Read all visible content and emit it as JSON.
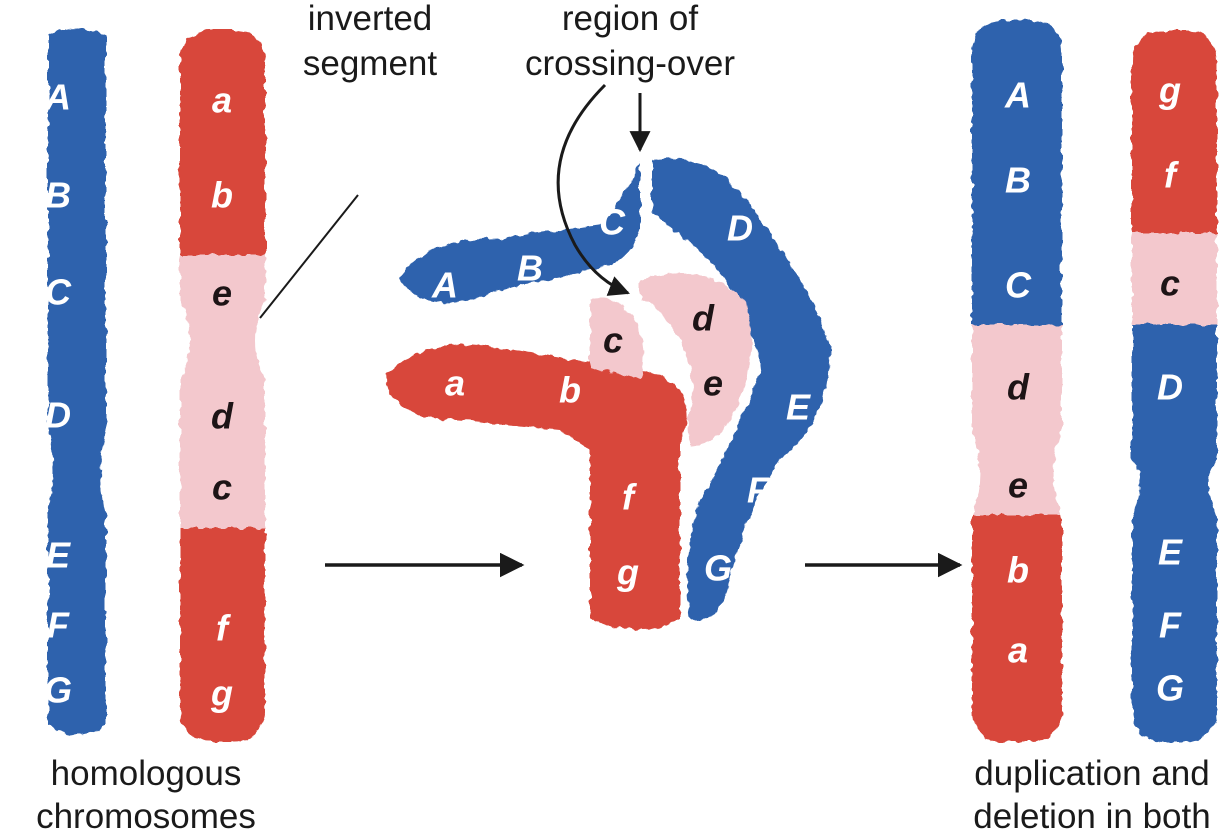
{
  "colors": {
    "homolog_blue": "#2f62ad",
    "homolog_red": "#d8463a",
    "inverted_pink": "#f3c8cd",
    "arrow": "#1a1a1a"
  },
  "captions": {
    "inverted_segment": [
      "inverted",
      "segment"
    ],
    "crossing_over": [
      "region of",
      "crossing-over"
    ],
    "homologous": [
      "homologous",
      "chromosomes"
    ],
    "result": [
      "duplication and",
      "deletion in both"
    ]
  },
  "left_panel": {
    "blue_genes": [
      "A",
      "B",
      "C",
      "D",
      "E",
      "F",
      "G"
    ],
    "red_genes": [
      "a",
      "b",
      "e",
      "d",
      "c",
      "f",
      "g"
    ]
  },
  "middle_panel": {
    "blue_genes": [
      "A",
      "B",
      "C",
      "D",
      "E",
      "F",
      "G"
    ],
    "red_genes": [
      "a",
      "b",
      "c",
      "d",
      "e",
      "f",
      "g"
    ]
  },
  "right_panel": {
    "left_genes": [
      "A",
      "B",
      "C",
      "d",
      "e",
      "b",
      "a"
    ],
    "right_genes": [
      "g",
      "f",
      "c",
      "D",
      "E",
      "F",
      "G"
    ]
  }
}
